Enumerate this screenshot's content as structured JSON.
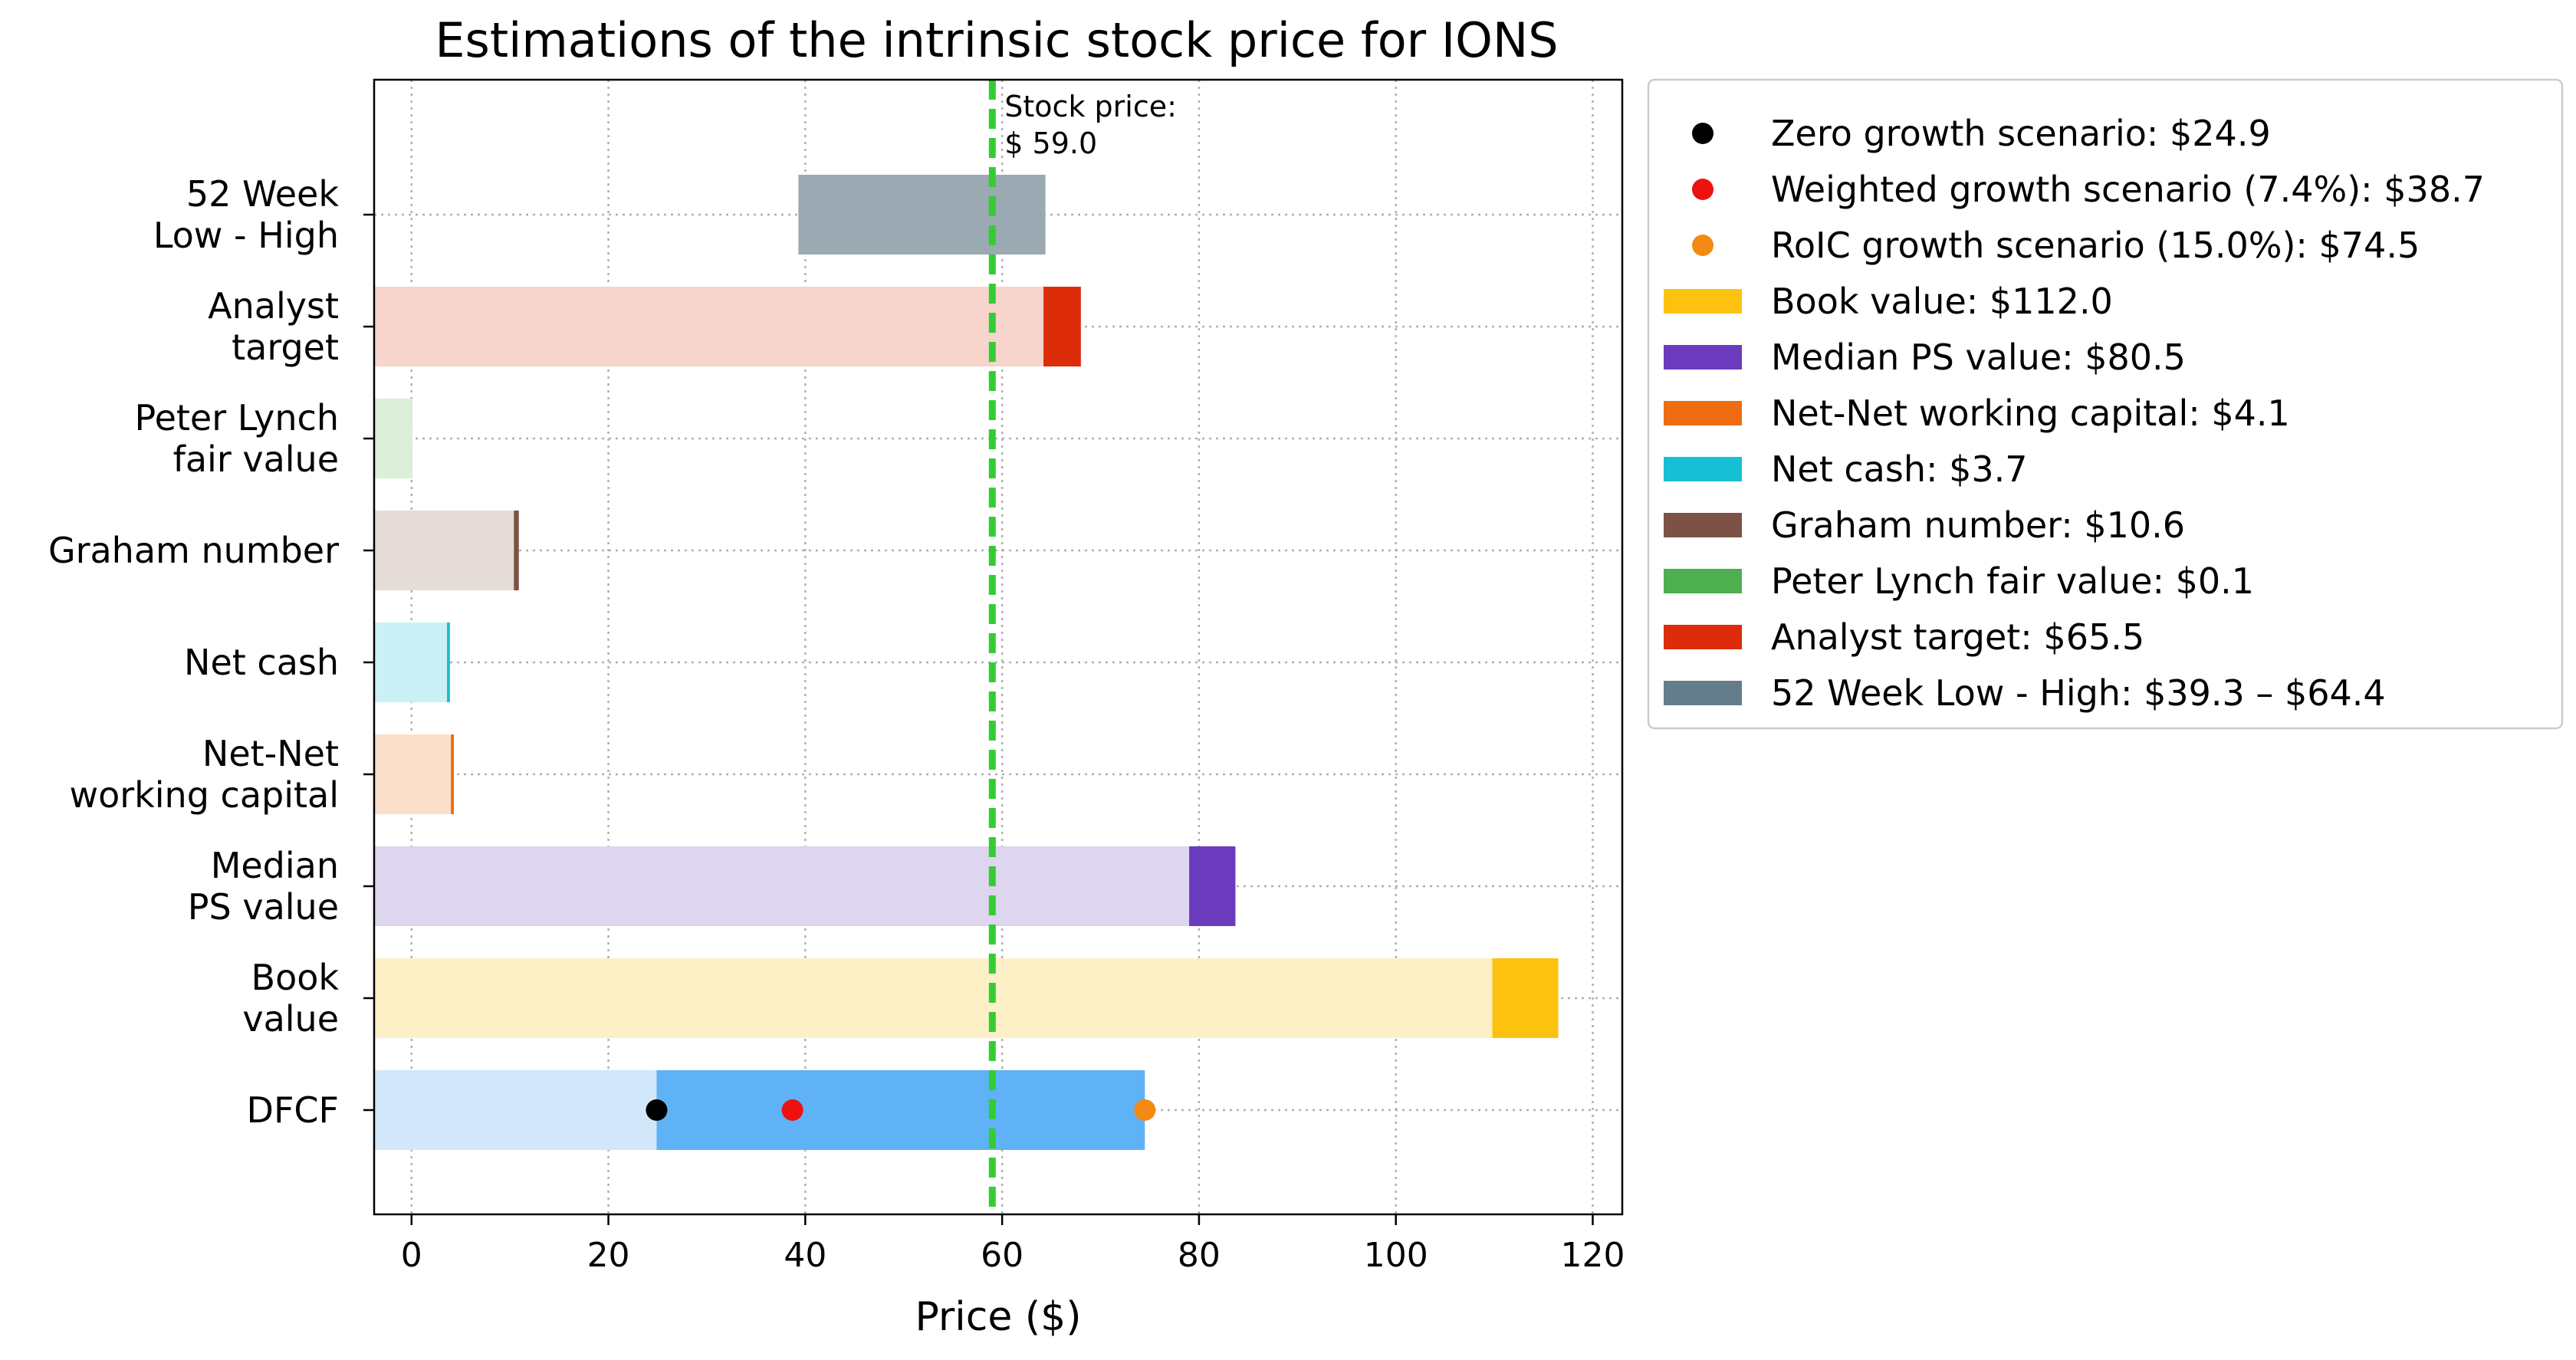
{
  "chart_data": {
    "type": "bar",
    "orientation": "horizontal",
    "title": "Estimations of the intrinsic stock price for IONS",
    "xlabel": "Price ($)",
    "ylabel": "",
    "xlim": [
      -3.8,
      123
    ],
    "xticks": [
      0,
      20,
      40,
      60,
      80,
      100,
      120
    ],
    "grid": true,
    "legend_position": "outside-right",
    "stock_price": {
      "value": 59.0,
      "label_line1": "Stock price:",
      "label_line2": "$ 59.0",
      "color": "#33cc33"
    },
    "categories": [
      {
        "key": "52w",
        "lines": [
          "52 Week",
          "Low - High"
        ]
      },
      {
        "key": "analyst",
        "lines": [
          "Analyst",
          "target"
        ]
      },
      {
        "key": "lynch",
        "lines": [
          "Peter Lynch",
          "fair value"
        ]
      },
      {
        "key": "graham",
        "lines": [
          "Graham number"
        ]
      },
      {
        "key": "netcash",
        "lines": [
          "Net cash"
        ]
      },
      {
        "key": "ncav",
        "lines": [
          "Net-Net",
          "working capital"
        ]
      },
      {
        "key": "ps",
        "lines": [
          "Median",
          "PS value"
        ]
      },
      {
        "key": "book",
        "lines": [
          "Book",
          "value"
        ]
      },
      {
        "key": "dfcf",
        "lines": [
          "DFCF"
        ]
      }
    ],
    "bars": [
      {
        "category": "52w",
        "start": 39.3,
        "end": 64.4,
        "color": "#9aa9b2"
      },
      {
        "category": "analyst",
        "start": -3.8,
        "end": 65.5,
        "color": "#f7d4cc"
      },
      {
        "category": "analyst",
        "start": 64.2,
        "end": 68.0,
        "color": "#dd2c0a"
      },
      {
        "category": "lynch",
        "start": -3.8,
        "end": 0.1,
        "color": "#dcefd9"
      },
      {
        "category": "graham",
        "start": -3.8,
        "end": 10.6,
        "color": "#e5dcd7"
      },
      {
        "category": "graham",
        "start": 10.4,
        "end": 10.9,
        "color": "#7b5244"
      },
      {
        "category": "netcash",
        "start": -3.8,
        "end": 3.7,
        "color": "#cbf0f5"
      },
      {
        "category": "netcash",
        "start": 3.6,
        "end": 3.9,
        "color": "#17bfd4"
      },
      {
        "category": "ncav",
        "start": -3.8,
        "end": 4.1,
        "color": "#fbdfcb"
      },
      {
        "category": "ncav",
        "start": 4.0,
        "end": 4.3,
        "color": "#ef6c13"
      },
      {
        "category": "ps",
        "start": -3.8,
        "end": 80.5,
        "color": "#ded5ee"
      },
      {
        "category": "ps",
        "start": 79.0,
        "end": 83.7,
        "color": "#6b3bbd"
      },
      {
        "category": "book",
        "start": -3.8,
        "end": 112.0,
        "color": "#fdf0c7"
      },
      {
        "category": "book",
        "start": 109.8,
        "end": 116.5,
        "color": "#fdc20f"
      },
      {
        "category": "dfcf",
        "start": -3.8,
        "end": 24.9,
        "color": "#d3e7fb"
      },
      {
        "category": "dfcf",
        "start": 24.9,
        "end": 74.5,
        "color": "#5fb2f6"
      }
    ],
    "points": [
      {
        "category": "dfcf",
        "x": 24.9,
        "color": "#000000",
        "name": "zero"
      },
      {
        "category": "dfcf",
        "x": 38.7,
        "color": "#ee1111",
        "name": "weighted"
      },
      {
        "category": "dfcf",
        "x": 74.5,
        "color": "#f38a12",
        "name": "roic"
      }
    ],
    "legend": [
      {
        "kind": "marker",
        "color": "#000000",
        "label": "Zero growth scenario: $24.9"
      },
      {
        "kind": "marker",
        "color": "#ee1111",
        "label": "Weighted growth scenario (7.4%): $38.7"
      },
      {
        "kind": "marker",
        "color": "#f38a12",
        "label": "RoIC growth scenario (15.0%): $74.5"
      },
      {
        "kind": "patch",
        "color": "#fdc20f",
        "label": "Book value: $112.0"
      },
      {
        "kind": "patch",
        "color": "#6b3bbd",
        "label": "Median PS value: $80.5"
      },
      {
        "kind": "patch",
        "color": "#ef6c13",
        "label": "Net-Net working capital: $4.1"
      },
      {
        "kind": "patch",
        "color": "#17bfd4",
        "label": "Net cash: $3.7"
      },
      {
        "kind": "patch",
        "color": "#7b5244",
        "label": "Graham number: $10.6"
      },
      {
        "kind": "patch",
        "color": "#4caf50",
        "label": "Peter Lynch fair value: $0.1"
      },
      {
        "kind": "patch",
        "color": "#dd2c0a",
        "label": "Analyst target: $65.5"
      },
      {
        "kind": "patch",
        "color": "#647d8c",
        "label": "52 Week Low - High: $39.3 – $64.4"
      }
    ]
  }
}
